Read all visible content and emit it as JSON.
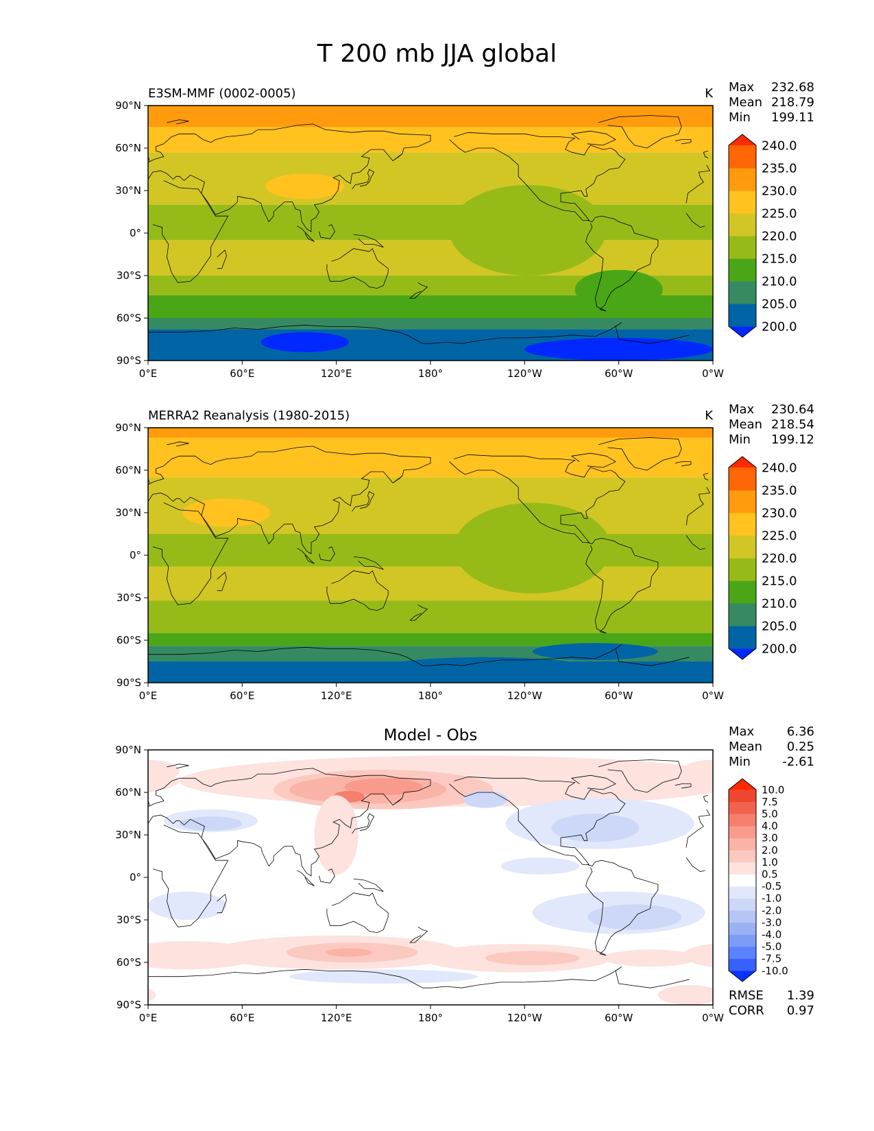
{
  "figure": {
    "title": "T 200 mb JJA global",
    "colors": {
      "abs_levels": [
        "#0028ff",
        "#0064a5",
        "#368a62",
        "#4aa616",
        "#96bb18",
        "#d2c624",
        "#ffc21f",
        "#ff9b0c",
        "#ff6605",
        "#ff2a00"
      ],
      "diff_levels": [
        "#0a32ff",
        "#3860ff",
        "#5a82ff",
        "#7c9cf8",
        "#9bb1f4",
        "#b5c6f5",
        "#cdd8f8",
        "#e2e8fb",
        "#ffffff",
        "#fde2de",
        "#fcc9c1",
        "#fab3a7",
        "#f89b8c",
        "#f57f6c",
        "#f2634f",
        "#ef4630",
        "#ff2a00"
      ],
      "coast": "#000000"
    }
  },
  "chart_data": [
    {
      "type": "heatmap",
      "panel": "model",
      "left_title": "E3SM-MMF (0002-0005)",
      "units": "K",
      "stats": [
        {
          "label": "Max",
          "value": "232.68"
        },
        {
          "label": "Mean",
          "value": "218.79"
        },
        {
          "label": "Min",
          "value": "199.11"
        }
      ],
      "colorbar_ticks": [
        "200.0",
        "205.0",
        "210.0",
        "215.0",
        "220.0",
        "225.0",
        "230.0",
        "235.0",
        "240.0"
      ],
      "xticks": [
        "0°E",
        "60°E",
        "120°E",
        "180°",
        "120°W",
        "60°W",
        "0°W"
      ],
      "yticks": [
        "90°N",
        "60°N",
        "30°N",
        "0°",
        "30°S",
        "60°S",
        "90°S"
      ],
      "xlim": [
        0,
        360
      ],
      "ylim": [
        -90,
        90
      ],
      "lat_bands": [
        {
          "lat_from": 90,
          "lat_to": 75,
          "level": 7
        },
        {
          "lat_from": 75,
          "lat_to": 57,
          "level": 6
        },
        {
          "lat_from": 57,
          "lat_to": 20,
          "level": 5
        },
        {
          "lat_from": 20,
          "lat_to": -5,
          "level": 4
        },
        {
          "lat_from": -5,
          "lat_to": -30,
          "level": 5
        },
        {
          "lat_from": -30,
          "lat_to": -44,
          "level": 4
        },
        {
          "lat_from": -44,
          "lat_to": -60,
          "level": 3
        },
        {
          "lat_from": -60,
          "lat_to": -68,
          "level": 2
        },
        {
          "lat_from": -68,
          "lat_to": -90,
          "level": 1
        }
      ],
      "blobs": [
        {
          "lon": 100,
          "lat": 33,
          "rlon": 25,
          "rlat": 9,
          "level": 6
        },
        {
          "lon": 242,
          "lat": 2,
          "rlon": 50,
          "rlat": 32,
          "level": 4
        },
        {
          "lon": 300,
          "lat": -40,
          "rlon": 28,
          "rlat": 14,
          "level": 3
        },
        {
          "lon": 100,
          "lat": -77,
          "rlon": 28,
          "rlat": 7,
          "level": 0
        },
        {
          "lon": 300,
          "lat": -82,
          "rlon": 60,
          "rlat": 8,
          "level": 0
        },
        {
          "lon": 15,
          "lat": 8,
          "rlon": 15,
          "rlat": 10,
          "level": 4
        }
      ]
    },
    {
      "type": "heatmap",
      "panel": "observations",
      "left_title": "MERRA2 Reanalysis (1980-2015)",
      "units": "K",
      "stats": [
        {
          "label": "Max",
          "value": "230.64"
        },
        {
          "label": "Mean",
          "value": "218.54"
        },
        {
          "label": "Min",
          "value": "199.12"
        }
      ],
      "colorbar_ticks": [
        "200.0",
        "205.0",
        "210.0",
        "215.0",
        "220.0",
        "225.0",
        "230.0",
        "235.0",
        "240.0"
      ],
      "xticks": [
        "0°E",
        "60°E",
        "120°E",
        "180°",
        "120°W",
        "60°W",
        "0°W"
      ],
      "yticks": [
        "90°N",
        "60°N",
        "30°N",
        "0°",
        "30°S",
        "60°S",
        "90°S"
      ],
      "xlim": [
        0,
        360
      ],
      "ylim": [
        -90,
        90
      ],
      "lat_bands": [
        {
          "lat_from": 90,
          "lat_to": 83,
          "level": 7
        },
        {
          "lat_from": 83,
          "lat_to": 55,
          "level": 6
        },
        {
          "lat_from": 55,
          "lat_to": 15,
          "level": 5
        },
        {
          "lat_from": 15,
          "lat_to": -8,
          "level": 4
        },
        {
          "lat_from": -8,
          "lat_to": -32,
          "level": 5
        },
        {
          "lat_from": -32,
          "lat_to": -55,
          "level": 4
        },
        {
          "lat_from": -55,
          "lat_to": -64,
          "level": 3
        },
        {
          "lat_from": -64,
          "lat_to": -75,
          "level": 2
        },
        {
          "lat_from": -75,
          "lat_to": -90,
          "level": 1
        }
      ],
      "blobs": [
        {
          "lon": 50,
          "lat": 30,
          "rlon": 28,
          "rlat": 10,
          "level": 6
        },
        {
          "lon": 245,
          "lat": 5,
          "rlon": 50,
          "rlat": 32,
          "level": 4
        },
        {
          "lon": 130,
          "lat": 5,
          "rlon": 40,
          "rlat": 6,
          "level": 4
        },
        {
          "lon": 215,
          "lat": -78,
          "rlon": 60,
          "rlat": 6,
          "level": 1
        },
        {
          "lon": 285,
          "lat": -68,
          "rlon": 40,
          "rlat": 6,
          "level": 1
        }
      ]
    },
    {
      "type": "heatmap",
      "panel": "difference",
      "center_title": "Model - Obs",
      "stats": [
        {
          "label": "Max",
          "value": "6.36"
        },
        {
          "label": "Mean",
          "value": "0.25"
        },
        {
          "label": "Min",
          "value": "-2.61"
        }
      ],
      "colorbar_ticks": [
        "-10.0",
        "-7.5",
        "-5.0",
        "-4.0",
        "-3.0",
        "-2.0",
        "-1.0",
        "-0.5",
        "0.5",
        "1.0",
        "2.0",
        "3.0",
        "4.0",
        "5.0",
        "7.5",
        "10.0"
      ],
      "metrics": [
        {
          "label": "RMSE",
          "value": "1.39"
        },
        {
          "label": "CORR",
          "value": "0.97"
        }
      ],
      "xticks": [
        "0°E",
        "60°E",
        "120°E",
        "180°",
        "120°W",
        "60°W",
        "0°W"
      ],
      "yticks": [
        "90°N",
        "60°N",
        "30°N",
        "0°",
        "30°S",
        "60°S",
        "90°S"
      ],
      "xlim": [
        0,
        360
      ],
      "ylim": [
        -90,
        90
      ],
      "background_level": 8,
      "blobs": [
        {
          "lon": 200,
          "lat": 68,
          "rlon": 180,
          "rlat": 18,
          "level": 9
        },
        {
          "lon": 150,
          "lat": 62,
          "rlon": 70,
          "rlat": 14,
          "level": 10
        },
        {
          "lon": 140,
          "lat": 62,
          "rlon": 50,
          "rlat": 10,
          "level": 11
        },
        {
          "lon": 150,
          "lat": 64,
          "rlon": 25,
          "rlat": 6,
          "level": 12
        },
        {
          "lon": 128,
          "lat": 57,
          "rlon": 10,
          "rlat": 4,
          "level": 13
        },
        {
          "lon": 120,
          "lat": 30,
          "rlon": 14,
          "rlat": 28,
          "level": 9
        },
        {
          "lon": 40,
          "lat": 40,
          "rlon": 30,
          "rlat": 8,
          "level": 7
        },
        {
          "lon": 40,
          "lat": 38,
          "rlon": 20,
          "rlat": 5,
          "level": 6
        },
        {
          "lon": 288,
          "lat": 38,
          "rlon": 60,
          "rlat": 18,
          "level": 7
        },
        {
          "lon": 285,
          "lat": 35,
          "rlon": 28,
          "rlat": 10,
          "level": 6
        },
        {
          "lon": 215,
          "lat": 55,
          "rlon": 14,
          "rlat": 6,
          "level": 6
        },
        {
          "lon": 300,
          "lat": -25,
          "rlon": 55,
          "rlat": 15,
          "level": 7
        },
        {
          "lon": 310,
          "lat": -28,
          "rlon": 30,
          "rlat": 9,
          "level": 6
        },
        {
          "lon": 120,
          "lat": -53,
          "rlon": 80,
          "rlat": 12,
          "level": 9
        },
        {
          "lon": 130,
          "lat": -53,
          "rlon": 42,
          "rlat": 7,
          "level": 10
        },
        {
          "lon": 128,
          "lat": -53,
          "rlon": 15,
          "rlat": 3,
          "level": 11
        },
        {
          "lon": 235,
          "lat": -57,
          "rlon": 60,
          "rlat": 10,
          "level": 9
        },
        {
          "lon": 245,
          "lat": -57,
          "rlon": 30,
          "rlat": 5,
          "level": 10
        },
        {
          "lon": 25,
          "lat": -55,
          "rlon": 45,
          "rlat": 10,
          "level": 9
        },
        {
          "lon": 320,
          "lat": -57,
          "rlon": 30,
          "rlat": 6,
          "level": 9
        },
        {
          "lon": 150,
          "lat": -70,
          "rlon": 60,
          "rlat": 5,
          "level": 7
        },
        {
          "lon": 345,
          "lat": -83,
          "rlon": 20,
          "rlat": 7,
          "level": 9
        },
        {
          "lon": 25,
          "lat": -20,
          "rlon": 25,
          "rlat": 10,
          "level": 7
        },
        {
          "lon": 250,
          "lat": 8,
          "rlon": 25,
          "rlat": 6,
          "level": 7
        },
        {
          "lon": 0,
          "lat": 75,
          "rlon": 20,
          "rlat": 8,
          "level": 9
        }
      ]
    }
  ]
}
